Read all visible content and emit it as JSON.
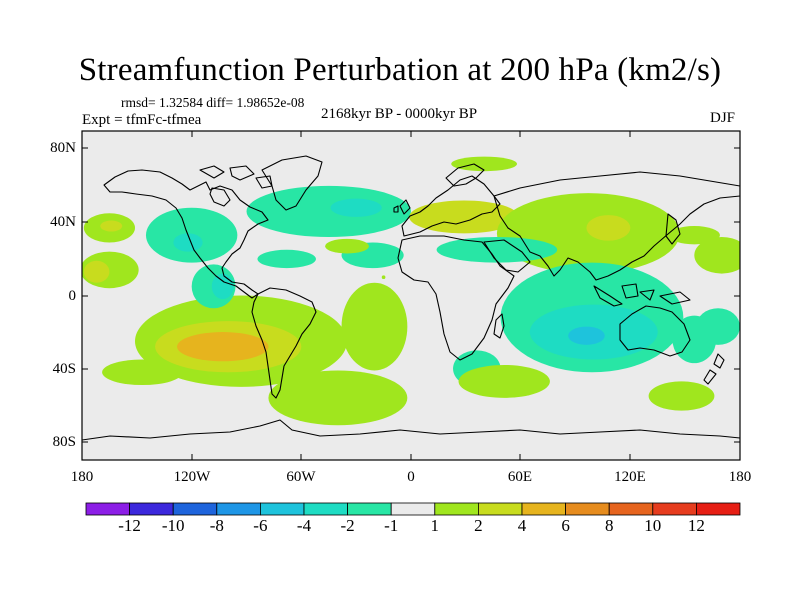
{
  "title": "Streamfunction Perturbation at 200 hPa (km2/s)",
  "stats": "rmsd= 1.32584 diff= 1.98652e-08",
  "experiment": "Expt = tfmFc-tfmea",
  "period": "2168kyr BP - 0000kyr BP",
  "season": "DJF",
  "map": {
    "projection": "Cylindrical Equidistant",
    "background_color": "#ebebeb",
    "lat_ticks": [
      "80N",
      "40N",
      "0",
      "40S",
      "80S"
    ],
    "lon_ticks": [
      "180",
      "120W",
      "60W",
      "0",
      "60E",
      "120E",
      "180"
    ]
  },
  "colorbar": {
    "colors": [
      "#8c1ee6",
      "#3c28dc",
      "#1e64dc",
      "#1e96e6",
      "#1ec3dc",
      "#1edcc3",
      "#28e6a5",
      "#ebebeb",
      "#a0e61e",
      "#c8dc1e",
      "#e6b41e",
      "#e68c1e",
      "#e6641e",
      "#e63c1e",
      "#e61e14"
    ],
    "labels": [
      "-12",
      "-10",
      "-8",
      "-6",
      "-4",
      "-2",
      "-1",
      "1",
      "2",
      "4",
      "6",
      "8",
      "10",
      "12"
    ]
  },
  "regions": [
    {
      "level": "1",
      "lon": -165,
      "lat": 37,
      "rx": 14,
      "ry": 8
    },
    {
      "level": "2",
      "lon": -164,
      "lat": 38,
      "rx": 6,
      "ry": 3
    },
    {
      "level": "1",
      "lon": -165,
      "lat": 14,
      "rx": 16,
      "ry": 10
    },
    {
      "level": "2",
      "lon": -172,
      "lat": 13,
      "rx": 7,
      "ry": 6
    },
    {
      "level": "-1",
      "lon": -120,
      "lat": 33,
      "rx": 25,
      "ry": 15
    },
    {
      "level": "-2",
      "lon": -122,
      "lat": 29,
      "rx": 8,
      "ry": 5
    },
    {
      "level": "-1",
      "lon": -68,
      "lat": 20,
      "rx": 16,
      "ry": 5
    },
    {
      "level": "1",
      "lon": -93,
      "lat": -25,
      "rx": 58,
      "ry": 25
    },
    {
      "level": "2",
      "lon": -100,
      "lat": -28,
      "rx": 40,
      "ry": 14
    },
    {
      "level": "4",
      "lon": -103,
      "lat": -28,
      "rx": 25,
      "ry": 8
    },
    {
      "level": "1",
      "lon": -15,
      "lat": 10,
      "rx": 1,
      "ry": 1
    },
    {
      "level": "-1",
      "lon": -108,
      "lat": 5,
      "rx": 12,
      "ry": 12
    },
    {
      "level": "-2",
      "lon": -103,
      "lat": 5,
      "rx": 6,
      "ry": 7
    },
    {
      "level": "1",
      "lon": -147,
      "lat": -42,
      "rx": 22,
      "ry": 7
    },
    {
      "level": "1",
      "lon": -40,
      "lat": -56,
      "rx": 38,
      "ry": 15
    },
    {
      "level": "-1",
      "lon": -45,
      "lat": 46,
      "rx": 45,
      "ry": 14
    },
    {
      "level": "-2",
      "lon": -30,
      "lat": 48,
      "rx": 14,
      "ry": 5
    },
    {
      "level": "-1",
      "lon": -21,
      "lat": 22,
      "rx": 17,
      "ry": 7
    },
    {
      "level": "1",
      "lon": -35,
      "lat": 27,
      "rx": 12,
      "ry": 4
    },
    {
      "level": "2",
      "lon": 29,
      "lat": 43,
      "rx": 30,
      "ry": 9
    },
    {
      "level": "1",
      "lon": 97,
      "lat": 34,
      "rx": 50,
      "ry": 22
    },
    {
      "level": "2",
      "lon": 108,
      "lat": 37,
      "rx": 12,
      "ry": 7
    },
    {
      "level": "1",
      "lon": 155,
      "lat": 33,
      "rx": 14,
      "ry": 5
    },
    {
      "level": "1",
      "lon": 170,
      "lat": 22,
      "rx": 15,
      "ry": 10
    },
    {
      "level": "-1",
      "lon": 47,
      "lat": 25,
      "rx": 33,
      "ry": 7
    },
    {
      "level": "-1",
      "lon": 99,
      "lat": -12,
      "rx": 50,
      "ry": 30
    },
    {
      "level": "-2",
      "lon": 100,
      "lat": -20,
      "rx": 35,
      "ry": 15
    },
    {
      "level": "-4",
      "lon": 96,
      "lat": -22,
      "rx": 10,
      "ry": 5
    },
    {
      "level": "-1",
      "lon": 36,
      "lat": -40,
      "rx": 13,
      "ry": 10
    },
    {
      "level": "-1",
      "lon": 155,
      "lat": -24,
      "rx": 12,
      "ry": 13
    },
    {
      "level": "-1",
      "lon": 168,
      "lat": -17,
      "rx": 12,
      "ry": 10
    },
    {
      "level": "1",
      "lon": 51,
      "lat": -47,
      "rx": 25,
      "ry": 9
    },
    {
      "level": "1",
      "lon": 148,
      "lat": -55,
      "rx": 18,
      "ry": 8
    },
    {
      "level": "1",
      "lon": 40,
      "lat": 72,
      "rx": 18,
      "ry": 4
    },
    {
      "level": "1",
      "lon": -20,
      "lat": -17,
      "rx": 18,
      "ry": 24
    }
  ]
}
